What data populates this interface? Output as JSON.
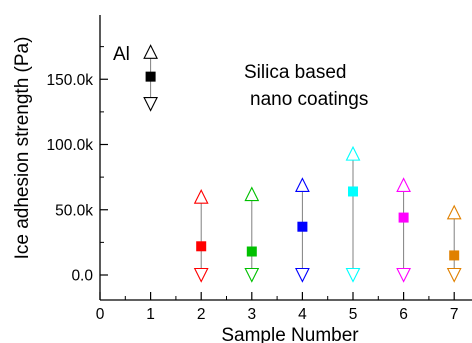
{
  "chart_data": {
    "type": "scatter",
    "xlabel": "Sample Number",
    "ylabel": "Ice adhesion strength (Pa)",
    "xlim": [
      0,
      7.5
    ],
    "ylim": [
      -10000,
      180000
    ],
    "x_ticks": [
      0,
      1,
      2,
      3,
      4,
      5,
      6,
      7
    ],
    "x_tick_labels": [
      "0",
      "1",
      "2",
      "3",
      "4",
      "5",
      "6",
      "7"
    ],
    "y_ticks": [
      0,
      50000,
      100000,
      150000
    ],
    "y_tick_labels": [
      "0.0",
      "50.0k",
      "100.0k",
      "150.0k"
    ],
    "grid": false,
    "annotations": [
      "Al",
      "Silica based",
      "nano coatings"
    ],
    "points": [
      {
        "x": 1,
        "y": 152000,
        "max": 171000,
        "min": 131000,
        "color": "#000000"
      },
      {
        "x": 2,
        "y": 22000,
        "max": 60000,
        "min": 0,
        "color": "#ff0000"
      },
      {
        "x": 3,
        "y": 18000,
        "max": 62000,
        "min": 0,
        "color": "#00c000"
      },
      {
        "x": 4,
        "y": 37000,
        "max": 69000,
        "min": 0,
        "color": "#0000ff"
      },
      {
        "x": 5,
        "y": 64000,
        "max": 93000,
        "min": 0,
        "color": "#00ffff"
      },
      {
        "x": 6,
        "y": 44000,
        "max": 69000,
        "min": 0,
        "color": "#ff00ff"
      },
      {
        "x": 7,
        "y": 15000,
        "max": 48000,
        "min": 0,
        "color": "#e08000"
      }
    ]
  }
}
